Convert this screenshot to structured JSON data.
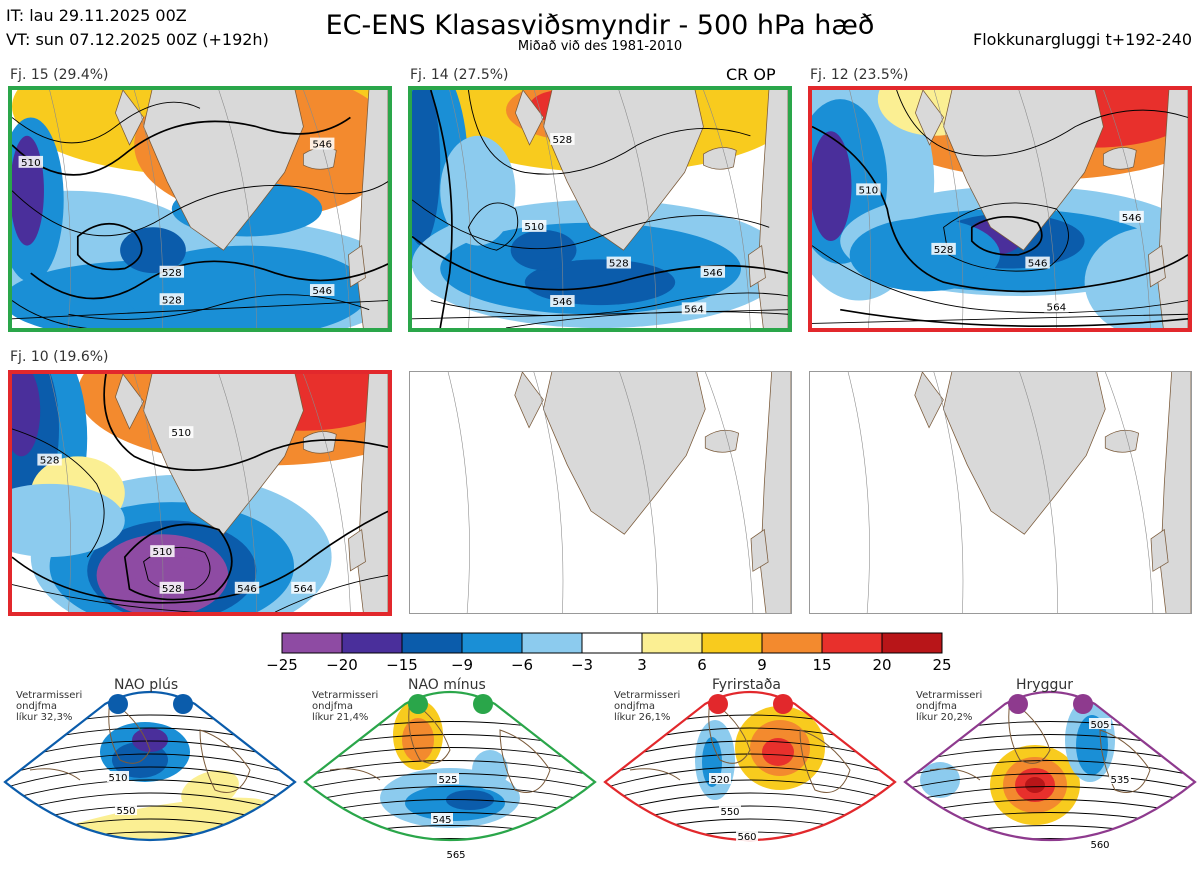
{
  "header": {
    "initial_time": "IT: lau 29.11.2025 00Z",
    "valid_time": "VT: sun 07.12.2025 00Z  (+192h)",
    "title": "EC-ENS Klasasviðsmyndir - 500 hPa hæð",
    "subtitle": "Miðað við des 1981-2010",
    "window": "Flokkunargluggi t+192-240"
  },
  "clusters": [
    {
      "label": "Fj. 15 (29.4%)",
      "percent": 29.4,
      "frame_color": "#2aa64a",
      "marker": "",
      "contour_labels": [
        "510",
        "528",
        "546",
        "528",
        "546"
      ]
    },
    {
      "label": "Fj. 14 (27.5%)",
      "percent": 27.5,
      "frame_color": "#2aa64a",
      "marker": "CR OP",
      "contour_labels": [
        "528",
        "510",
        "528",
        "546",
        "546",
        "564"
      ]
    },
    {
      "label": "Fj. 12 (23.5%)",
      "percent": 23.5,
      "frame_color": "#e2282c",
      "marker": "",
      "contour_labels": [
        "510",
        "528",
        "546",
        "546",
        "564"
      ]
    },
    {
      "label": "Fj. 10 (19.6%)",
      "percent": 19.6,
      "frame_color": "#e2282c",
      "marker": "",
      "contour_labels": [
        "510",
        "528",
        "510",
        "528",
        "546",
        "564"
      ]
    }
  ],
  "colorbar": {
    "ticks": [
      "−25",
      "−20",
      "−15",
      "−9",
      "−6",
      "−3",
      "3",
      "6",
      "9",
      "15",
      "20",
      "25"
    ],
    "colors": [
      "#8e4ba3",
      "#4a2f9b",
      "#0b5cab",
      "#1a8fd6",
      "#8ccbee",
      "#ffffff",
      "#fbef93",
      "#f8cb1e",
      "#f38a2e",
      "#e8302c",
      "#b81518"
    ]
  },
  "regimes": [
    {
      "name": "NAO plús",
      "color": "#0b5cab",
      "stat_line1": "Vetrarmisseri",
      "stat_line2": "ondjfma",
      "stat_line3": "líkur 32,3%",
      "contour_labels": [
        "510",
        "550"
      ]
    },
    {
      "name": "NAO mínus",
      "color": "#2aa64a",
      "stat_line1": "Vetrarmisseri",
      "stat_line2": "ondjfma",
      "stat_line3": "líkur 21,4%",
      "contour_labels": [
        "525",
        "545",
        "565"
      ]
    },
    {
      "name": "Fyrirstaða",
      "color": "#e2282c",
      "stat_line1": "Vetrarmisseri",
      "stat_line2": "ondjfma",
      "stat_line3": "líkur 26,1%",
      "contour_labels": [
        "520",
        "550",
        "560"
      ]
    },
    {
      "name": "Hryggur",
      "color": "#8e3a8e",
      "stat_line1": "Vetrarmisseri",
      "stat_line2": "ondjfma",
      "stat_line3": "líkur 20,2%",
      "contour_labels": [
        "505",
        "535",
        "560"
      ]
    }
  ]
}
